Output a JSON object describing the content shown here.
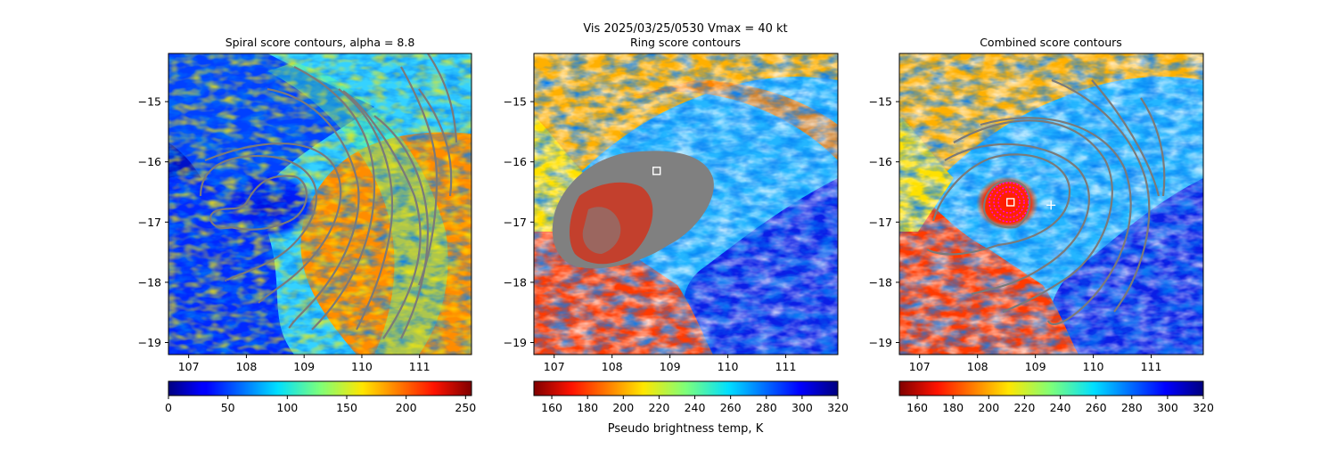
{
  "figure": {
    "suptitle_line1": "Vis  2025/03/25/0530    Vmax = 40 kt",
    "colorbar_label": "Pseudo brightness temp, K"
  },
  "chart_data": [
    {
      "type": "heatmap",
      "title": "Spiral score contours, alpha =  8.8",
      "xlabel": "",
      "ylabel": "",
      "xlim": [
        106.65,
        111.9
      ],
      "ylim": [
        -19.2,
        -14.2
      ],
      "xticks": [
        107,
        108,
        109,
        110,
        111
      ],
      "yticks": [
        -15,
        -16,
        -17,
        -18,
        -19
      ],
      "colormap": "jet",
      "colorbar": {
        "range": [
          0,
          255
        ],
        "ticks": [
          0,
          50,
          100,
          150,
          200,
          250
        ],
        "reversed": false
      },
      "overlays": [
        "gray spiral contours"
      ]
    },
    {
      "type": "heatmap",
      "title": "Ring score contours",
      "xlabel": "",
      "ylabel": "",
      "xlim": [
        106.65,
        111.9
      ],
      "ylim": [
        -19.2,
        -14.2
      ],
      "xticks": [
        107,
        108,
        109,
        110,
        111
      ],
      "yticks": [
        -15,
        -16,
        -17,
        -18,
        -19
      ],
      "colormap": "jet_r",
      "colorbar": {
        "range": [
          150,
          320
        ],
        "ticks": [
          160,
          180,
          200,
          220,
          240,
          260,
          280,
          300,
          320
        ],
        "reversed": true
      },
      "overlays": [
        "gray ring score mask"
      ],
      "markers": [
        {
          "symbol": "square",
          "x": 108.77,
          "y": -16.15
        }
      ]
    },
    {
      "type": "heatmap",
      "title": "Combined score contours",
      "xlabel": "",
      "ylabel": "",
      "xlim": [
        106.65,
        111.9
      ],
      "ylim": [
        -19.2,
        -14.2
      ],
      "xticks": [
        107,
        108,
        109,
        110,
        111
      ],
      "yticks": [
        -15,
        -16,
        -17,
        -18,
        -19
      ],
      "colormap": "jet_r",
      "colorbar": {
        "range": [
          150,
          320
        ],
        "ticks": [
          160,
          180,
          200,
          220,
          240,
          260,
          280,
          300,
          320
        ],
        "reversed": true
      },
      "overlays": [
        "gray spiral contours",
        "magenta combined-score rings"
      ],
      "markers": [
        {
          "symbol": "square",
          "x": 108.57,
          "y": -16.67
        },
        {
          "symbol": "plus",
          "x": 109.27,
          "y": -16.72
        }
      ]
    }
  ]
}
